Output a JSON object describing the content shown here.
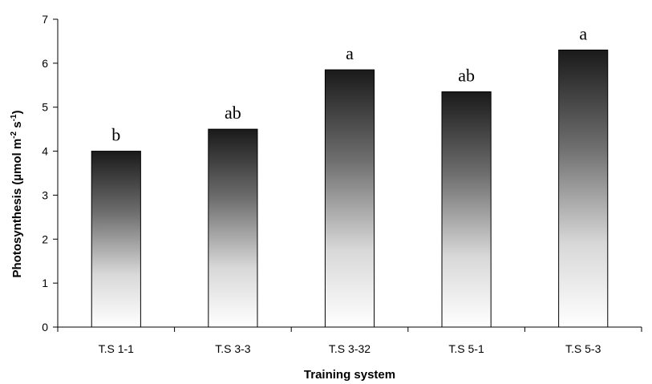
{
  "chart_data": {
    "type": "bar",
    "title": "",
    "xlabel": "Training system",
    "ylabel_parts": {
      "main": "Photosynthesis (µmol m",
      "exp1": "-2",
      "mid": " s",
      "exp2": "-1",
      "end": ")"
    },
    "ylim": [
      0,
      7
    ],
    "yticks": [
      0,
      1,
      2,
      3,
      4,
      5,
      6,
      7
    ],
    "categories": [
      "T.S 1-1",
      "T.S 3-3",
      "T.S 3-32",
      "T.S 5-1",
      "T.S 5-3"
    ],
    "values": [
      4.0,
      4.5,
      5.85,
      5.35,
      6.3
    ],
    "significance_labels": [
      "b",
      "ab",
      "a",
      "ab",
      "a"
    ],
    "grid": false,
    "legend": false,
    "bar_fill": "vertical gradient, dark at top to white at bottom",
    "colors": {
      "bar_top": "#1a1a1a",
      "bar_bottom": "#ffffff",
      "axis": "#000000"
    }
  }
}
